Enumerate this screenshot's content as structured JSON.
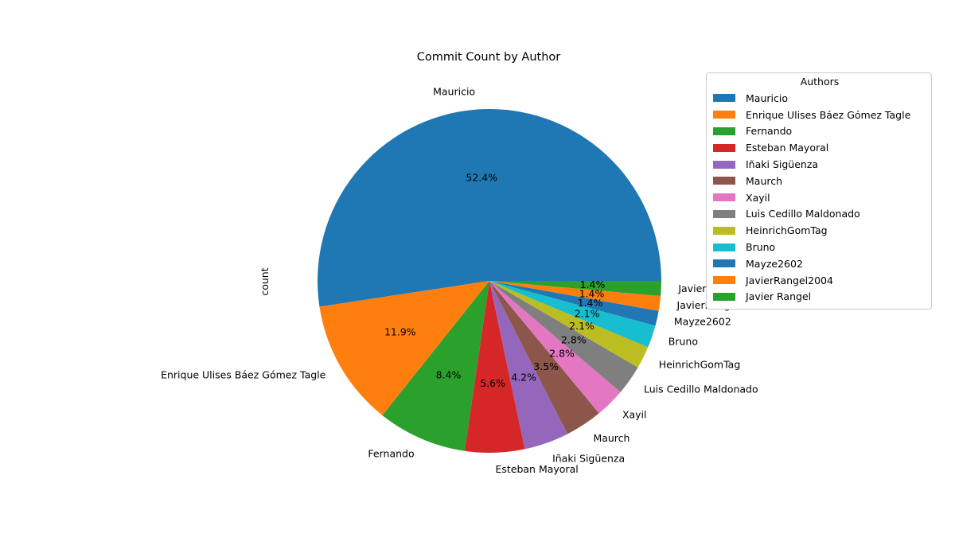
{
  "chart_data": {
    "type": "pie",
    "title": "Commit Count by Author",
    "ylabel": "count",
    "legend_title": "Authors",
    "legend_position": "upper-right",
    "slices": [
      {
        "label": "Mauricio",
        "percent": 52.4,
        "pct_label": "52.4%",
        "color": "#1f77b4"
      },
      {
        "label": "Enrique Ulises Báez Gómez Tagle",
        "percent": 11.9,
        "pct_label": "11.9%",
        "color": "#ff7f0e"
      },
      {
        "label": "Fernando",
        "percent": 8.4,
        "pct_label": "8.4%",
        "color": "#2ca02c"
      },
      {
        "label": "Esteban Mayoral",
        "percent": 5.6,
        "pct_label": "5.6%",
        "color": "#d62728"
      },
      {
        "label": "Iñaki Sigüenza",
        "percent": 4.2,
        "pct_label": "4.2%",
        "color": "#9467bd"
      },
      {
        "label": "Maurch",
        "percent": 3.5,
        "pct_label": "3.5%",
        "color": "#8c564b"
      },
      {
        "label": "Xayil",
        "percent": 2.8,
        "pct_label": "2.8%",
        "color": "#e377c2"
      },
      {
        "label": "Luis Cedillo Maldonado",
        "percent": 2.8,
        "pct_label": "2.8%",
        "color": "#7f7f7f"
      },
      {
        "label": "HeinrichGomTag",
        "percent": 2.1,
        "pct_label": "2.1%",
        "color": "#bcbd22"
      },
      {
        "label": "Bruno",
        "percent": 2.1,
        "pct_label": "2.1%",
        "color": "#17becf"
      },
      {
        "label": "Mayze2602",
        "percent": 1.4,
        "pct_label": "1.4%",
        "color": "#1f77b4"
      },
      {
        "label": "JavierRangel2004",
        "percent": 1.4,
        "pct_label": "1.4%",
        "color": "#ff7f0e"
      },
      {
        "label": "Javier Rangel",
        "percent": 1.4,
        "pct_label": "1.4%",
        "color": "#2ca02c"
      }
    ]
  }
}
